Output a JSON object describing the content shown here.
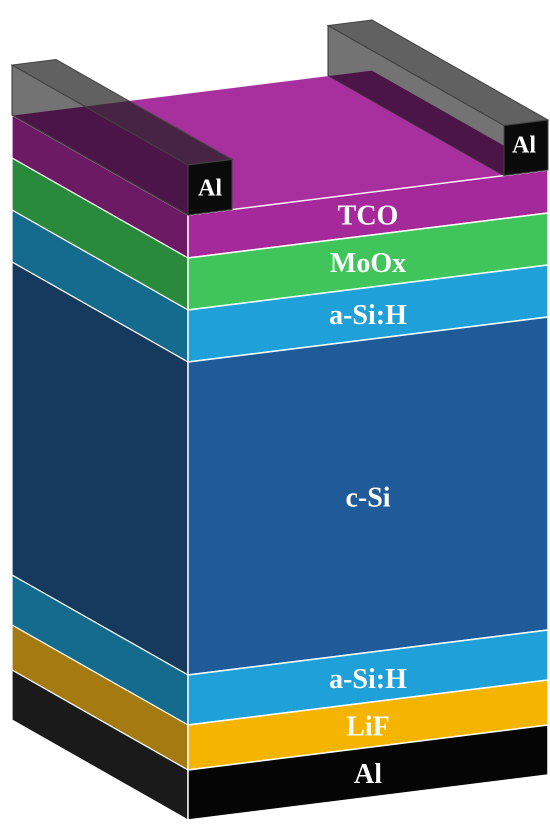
{
  "layers": [
    {
      "label": "TCO"
    },
    {
      "label": "MoOx"
    },
    {
      "label": "a-Si:H"
    },
    {
      "label": "c-Si"
    },
    {
      "label": "a-Si:H"
    },
    {
      "label": "LiF"
    },
    {
      "label": "Al"
    }
  ],
  "electrodes": [
    {
      "label": "Al"
    },
    {
      "label": "Al"
    }
  ]
}
